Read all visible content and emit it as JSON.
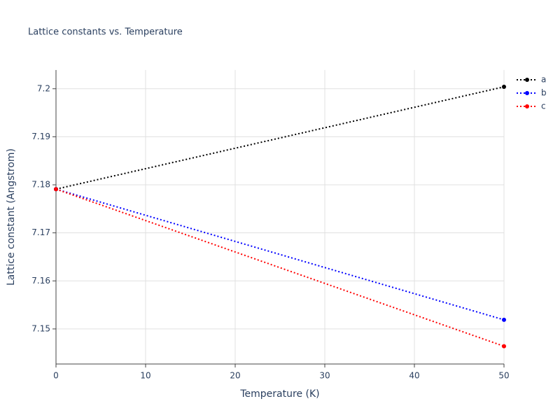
{
  "chart_data": {
    "type": "line",
    "title": "Lattice constants vs. Temperature",
    "x_label": "Temperature (K)",
    "y_label": "Lattice constant (Angstrom)",
    "x": [
      0,
      50
    ],
    "series": [
      {
        "name": "a",
        "color": "#000000",
        "values": [
          7.1791,
          7.2004
        ]
      },
      {
        "name": "b",
        "color": "#0000ff",
        "values": [
          7.1791,
          7.1519
        ]
      },
      {
        "name": "c",
        "color": "#ff0000",
        "values": [
          7.1791,
          7.1464
        ]
      }
    ],
    "xlim": [
      0,
      50
    ],
    "xticks": [
      0,
      10,
      20,
      30,
      40,
      50
    ],
    "ylim": [
      7.1427,
      7.2039
    ],
    "yticks": [
      7.15,
      7.16,
      7.17,
      7.18,
      7.19,
      7.2
    ],
    "grid": true,
    "legend": "right",
    "line_style": "dotted"
  }
}
